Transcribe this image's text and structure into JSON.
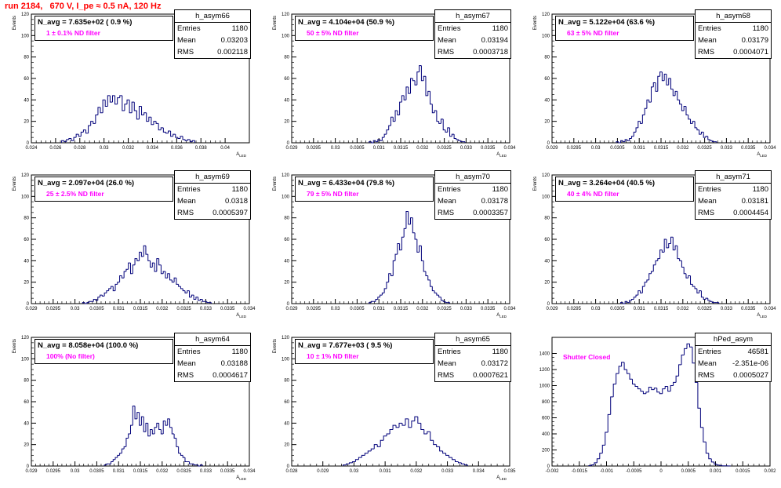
{
  "header": {
    "title": "run 2184,   670 V, I_pe ≈ 0.5 nA, 120 Hz"
  },
  "chart_data": [
    {
      "type": "histogram",
      "name": "h_asym66",
      "ylabel": "Events",
      "xlabel": "A_LED",
      "xlim": [
        0.024,
        0.042
      ],
      "ylim": [
        0,
        120
      ],
      "xticks": [
        "0.024",
        "0.026",
        "0.028",
        "0.03",
        "0.032",
        "0.034",
        "0.036",
        "0.038",
        "0.04"
      ],
      "yticks": [
        "0",
        "20",
        "40",
        "60",
        "80",
        "100",
        "120"
      ],
      "stats": {
        "Entries": "1180",
        "Mean": "0.03203",
        "RMS": "0.002118"
      },
      "navg": "N_avg = 7.635e+02 ( 0.9 %)",
      "filter": "1 ± 0.1% ND filter",
      "x": [
        0.0266,
        0.0268,
        0.027,
        0.0272,
        0.0274,
        0.0276,
        0.0278,
        0.028,
        0.0282,
        0.0284,
        0.0286,
        0.0288,
        0.029,
        0.0292,
        0.0294,
        0.0296,
        0.0298,
        0.03,
        0.0302,
        0.0304,
        0.0306,
        0.0308,
        0.031,
        0.0312,
        0.0314,
        0.0316,
        0.0318,
        0.032,
        0.0322,
        0.0324,
        0.0326,
        0.0328,
        0.033,
        0.0332,
        0.0334,
        0.0336,
        0.0338,
        0.034,
        0.0342,
        0.0344,
        0.0346,
        0.0348,
        0.035,
        0.0352,
        0.0354,
        0.0356,
        0.0358,
        0.036,
        0.0362,
        0.0364,
        0.0366,
        0.0368,
        0.037,
        0.0372,
        0.0374
      ],
      "values": [
        2,
        1,
        3,
        4,
        2,
        5,
        8,
        6,
        10,
        12,
        9,
        16,
        20,
        18,
        26,
        33,
        28,
        40,
        34,
        44,
        38,
        44,
        36,
        42,
        44,
        30,
        36,
        40,
        28,
        38,
        30,
        22,
        34,
        26,
        28,
        20,
        24,
        17,
        20,
        18,
        12,
        14,
        10,
        9,
        11,
        6,
        8,
        5,
        4,
        6,
        3,
        2,
        3,
        1,
        2
      ]
    },
    {
      "type": "histogram",
      "name": "h_asym67",
      "ylabel": "Events",
      "xlabel": "A_LED",
      "xlim": [
        0.029,
        0.034
      ],
      "ylim": [
        0,
        120
      ],
      "xticks": [
        "0.029",
        "0.0295",
        "0.03",
        "0.0305",
        "0.031",
        "0.0315",
        "0.032",
        "0.0325",
        "0.033",
        "0.0335",
        "0.034"
      ],
      "yticks": [
        "0",
        "20",
        "40",
        "60",
        "80",
        "100",
        "120"
      ],
      "stats": {
        "Entries": "1180",
        "Mean": "0.03194",
        "RMS": "0.0003718"
      },
      "navg": "N_avg = 4.104e+04 (50.9 %)",
      "filter": "50 ± 5% ND filter",
      "x": [
        0.0308,
        0.03085,
        0.0309,
        0.03095,
        0.031,
        0.03105,
        0.0311,
        0.03115,
        0.0312,
        0.03125,
        0.0313,
        0.03135,
        0.0314,
        0.03145,
        0.0315,
        0.03155,
        0.0316,
        0.03165,
        0.0317,
        0.03175,
        0.0318,
        0.03185,
        0.0319,
        0.03195,
        0.032,
        0.03205,
        0.0321,
        0.03215,
        0.0322,
        0.03225,
        0.0323,
        0.03235,
        0.0324,
        0.03245,
        0.0325,
        0.03255,
        0.0326,
        0.03265,
        0.0327,
        0.03275,
        0.0328,
        0.03285,
        0.0329,
        0.03295
      ],
      "values": [
        1,
        0,
        2,
        1,
        3,
        2,
        5,
        8,
        12,
        16,
        24,
        20,
        30,
        26,
        38,
        44,
        40,
        52,
        46,
        60,
        58,
        54,
        66,
        72,
        58,
        62,
        44,
        48,
        36,
        28,
        30,
        20,
        18,
        22,
        12,
        10,
        14,
        6,
        8,
        4,
        3,
        2,
        1,
        1
      ]
    },
    {
      "type": "histogram",
      "name": "h_asym68",
      "ylabel": "Events",
      "xlabel": "A_LED",
      "xlim": [
        0.029,
        0.034
      ],
      "ylim": [
        0,
        120
      ],
      "xticks": [
        "0.029",
        "0.0295",
        "0.03",
        "0.0305",
        "0.031",
        "0.0315",
        "0.032",
        "0.0325",
        "0.033",
        "0.0335",
        "0.034"
      ],
      "yticks": [
        "0",
        "20",
        "40",
        "60",
        "80",
        "100",
        "120"
      ],
      "stats": {
        "Entries": "1180",
        "Mean": "0.03179",
        "RMS": "0.0004071"
      },
      "navg": "N_avg = 5.122e+04 (63.6 %)",
      "filter": "63 ± 5% ND filter",
      "x": [
        0.0305,
        0.03055,
        0.0306,
        0.03065,
        0.0307,
        0.03075,
        0.0308,
        0.03085,
        0.0309,
        0.03095,
        0.031,
        0.03105,
        0.0311,
        0.03115,
        0.0312,
        0.03125,
        0.0313,
        0.03135,
        0.0314,
        0.03145,
        0.0315,
        0.03155,
        0.0316,
        0.03165,
        0.0317,
        0.03175,
        0.0318,
        0.03185,
        0.0319,
        0.03195,
        0.032,
        0.03205,
        0.0321,
        0.03215,
        0.0322,
        0.03225,
        0.0323,
        0.03235,
        0.0324,
        0.03245,
        0.0325,
        0.03255,
        0.0326,
        0.03265,
        0.0327,
        0.03275
      ],
      "values": [
        1,
        0,
        2,
        1,
        3,
        2,
        4,
        6,
        10,
        14,
        20,
        18,
        26,
        32,
        40,
        38,
        52,
        56,
        48,
        62,
        66,
        58,
        64,
        54,
        60,
        50,
        44,
        48,
        40,
        36,
        30,
        34,
        26,
        22,
        18,
        20,
        14,
        12,
        8,
        10,
        5,
        6,
        3,
        2,
        1,
        1
      ]
    },
    {
      "type": "histogram",
      "name": "h_asym69",
      "ylabel": "Events",
      "xlabel": "A_LED",
      "xlim": [
        0.029,
        0.034
      ],
      "ylim": [
        0,
        120
      ],
      "xticks": [
        "0.029",
        "0.0295",
        "0.03",
        "0.0305",
        "0.031",
        "0.0315",
        "0.032",
        "0.0325",
        "0.033",
        "0.0335",
        "0.034"
      ],
      "yticks": [
        "0",
        "20",
        "40",
        "60",
        "80",
        "100",
        "120"
      ],
      "stats": {
        "Entries": "1180",
        "Mean": "0.0318",
        "RMS": "0.0005397"
      },
      "navg": "N_avg = 2.097e+04 (26.0 %)",
      "filter": "25 ± 2.5% ND filter",
      "x": [
        0.0302,
        0.03025,
        0.0303,
        0.03035,
        0.0304,
        0.03045,
        0.0305,
        0.03055,
        0.0306,
        0.03065,
        0.0307,
        0.03075,
        0.0308,
        0.03085,
        0.0309,
        0.03095,
        0.031,
        0.03105,
        0.0311,
        0.03115,
        0.0312,
        0.03125,
        0.0313,
        0.03135,
        0.0314,
        0.03145,
        0.0315,
        0.03155,
        0.0316,
        0.03165,
        0.0317,
        0.03175,
        0.0318,
        0.03185,
        0.0319,
        0.03195,
        0.032,
        0.03205,
        0.0321,
        0.03215,
        0.0322,
        0.03225,
        0.0323,
        0.03235,
        0.0324,
        0.03245,
        0.0325,
        0.03255,
        0.0326,
        0.03265,
        0.0327,
        0.03275,
        0.0328,
        0.03285,
        0.0329,
        0.03295,
        0.033,
        0.03305,
        0.0331
      ],
      "values": [
        1,
        0,
        1,
        2,
        2,
        4,
        3,
        6,
        8,
        7,
        10,
        12,
        14,
        16,
        12,
        18,
        20,
        26,
        24,
        30,
        32,
        38,
        28,
        36,
        42,
        40,
        48,
        44,
        54,
        46,
        40,
        34,
        38,
        30,
        42,
        36,
        28,
        30,
        24,
        28,
        22,
        20,
        24,
        18,
        16,
        14,
        12,
        10,
        12,
        6,
        8,
        4,
        6,
        3,
        4,
        2,
        2,
        1,
        1
      ]
    },
    {
      "type": "histogram",
      "name": "h_asym70",
      "ylabel": "Events",
      "xlabel": "A_LED",
      "xlim": [
        0.029,
        0.034
      ],
      "ylim": [
        0,
        120
      ],
      "xticks": [
        "0.029",
        "0.0295",
        "0.03",
        "0.0305",
        "0.031",
        "0.0315",
        "0.032",
        "0.0325",
        "0.033",
        "0.0335",
        "0.034"
      ],
      "yticks": [
        "0",
        "20",
        "40",
        "60",
        "80",
        "100",
        "120"
      ],
      "stats": {
        "Entries": "1180",
        "Mean": "0.03178",
        "RMS": "0.0003357"
      },
      "navg": "N_avg = 6.433e+04 (79.8 %)",
      "filter": "79 ± 5% ND filter",
      "x": [
        0.0308,
        0.03085,
        0.0309,
        0.03095,
        0.031,
        0.03105,
        0.0311,
        0.03115,
        0.0312,
        0.03125,
        0.0313,
        0.03135,
        0.0314,
        0.03145,
        0.0315,
        0.03155,
        0.0316,
        0.03165,
        0.0317,
        0.03175,
        0.0318,
        0.03185,
        0.0319,
        0.03195,
        0.032,
        0.03205,
        0.0321,
        0.03215,
        0.0322,
        0.03225,
        0.0323,
        0.03235,
        0.0324,
        0.03245,
        0.0325,
        0.03255,
        0.0326
      ],
      "values": [
        1,
        2,
        2,
        4,
        6,
        8,
        10,
        14,
        20,
        28,
        26,
        40,
        46,
        56,
        50,
        62,
        70,
        86,
        74,
        80,
        66,
        60,
        48,
        54,
        40,
        30,
        26,
        22,
        16,
        12,
        10,
        8,
        6,
        3,
        2,
        1,
        1
      ]
    },
    {
      "type": "histogram",
      "name": "h_asym71",
      "ylabel": "Events",
      "xlabel": "A_LED",
      "xlim": [
        0.029,
        0.034
      ],
      "ylim": [
        0,
        120
      ],
      "xticks": [
        "0.029",
        "0.0295",
        "0.03",
        "0.0305",
        "0.031",
        "0.0315",
        "0.032",
        "0.0325",
        "0.033",
        "0.0335",
        "0.034"
      ],
      "yticks": [
        "0",
        "20",
        "40",
        "60",
        "80",
        "100",
        "120"
      ],
      "stats": {
        "Entries": "1180",
        "Mean": "0.03181",
        "RMS": "0.0004454"
      },
      "navg": "N_avg = 3.264e+04 (40.5 %)",
      "filter": "40 ± 4% ND filter",
      "x": [
        0.0306,
        0.03065,
        0.0307,
        0.03075,
        0.0308,
        0.03085,
        0.0309,
        0.03095,
        0.031,
        0.03105,
        0.0311,
        0.03115,
        0.0312,
        0.03125,
        0.0313,
        0.03135,
        0.0314,
        0.03145,
        0.0315,
        0.03155,
        0.0316,
        0.03165,
        0.0317,
        0.03175,
        0.0318,
        0.03185,
        0.0319,
        0.03195,
        0.032,
        0.03205,
        0.0321,
        0.03215,
        0.0322,
        0.03225,
        0.0323,
        0.03235,
        0.0324,
        0.03245,
        0.0325,
        0.03255,
        0.0326,
        0.03265,
        0.0327,
        0.03275,
        0.0328
      ],
      "values": [
        1,
        0,
        2,
        1,
        3,
        4,
        6,
        8,
        12,
        10,
        16,
        20,
        22,
        28,
        30,
        36,
        40,
        42,
        50,
        48,
        60,
        52,
        56,
        62,
        50,
        54,
        42,
        40,
        34,
        28,
        24,
        26,
        18,
        16,
        14,
        10,
        12,
        6,
        4,
        5,
        3,
        2,
        1,
        1,
        1
      ]
    },
    {
      "type": "histogram",
      "name": "h_asym64",
      "ylabel": "Events",
      "xlabel": "A_LED",
      "xlim": [
        0.029,
        0.034
      ],
      "ylim": [
        0,
        120
      ],
      "xticks": [
        "0.029",
        "0.0295",
        "0.03",
        "0.0305",
        "0.031",
        "0.0315",
        "0.032",
        "0.0325",
        "0.033",
        "0.0335",
        "0.034"
      ],
      "yticks": [
        "0",
        "20",
        "40",
        "60",
        "80",
        "100",
        "120"
      ],
      "stats": {
        "Entries": "1180",
        "Mean": "0.03188",
        "RMS": "0.0004617"
      },
      "navg": "N_avg = 8.058e+04 (100.0 %)",
      "filter": "100% (No filter)",
      "x": [
        0.0307,
        0.03075,
        0.0308,
        0.03085,
        0.0309,
        0.03095,
        0.031,
        0.03105,
        0.0311,
        0.03115,
        0.0312,
        0.03125,
        0.0313,
        0.03135,
        0.0314,
        0.03145,
        0.0315,
        0.03155,
        0.0316,
        0.03165,
        0.0317,
        0.03175,
        0.0318,
        0.03185,
        0.0319,
        0.03195,
        0.032,
        0.03205,
        0.0321,
        0.03215,
        0.0322,
        0.03225,
        0.0323,
        0.03235,
        0.0324,
        0.03245,
        0.0325,
        0.03255,
        0.0326,
        0.03265,
        0.0327,
        0.03275,
        0.0328,
        0.03285,
        0.0329
      ],
      "values": [
        1,
        2,
        2,
        4,
        6,
        8,
        10,
        12,
        16,
        18,
        26,
        30,
        38,
        56,
        44,
        50,
        38,
        46,
        32,
        40,
        28,
        34,
        30,
        36,
        40,
        34,
        30,
        42,
        38,
        44,
        36,
        30,
        26,
        18,
        12,
        10,
        8,
        4,
        4,
        2,
        2,
        1,
        1,
        0,
        1
      ]
    },
    {
      "type": "histogram",
      "name": "h_asym65",
      "ylabel": "Events",
      "xlabel": "A_LED",
      "xlim": [
        0.028,
        0.035
      ],
      "ylim": [
        0,
        120
      ],
      "xticks": [
        "0.028",
        "0.029",
        "0.03",
        "0.031",
        "0.032",
        "0.033",
        "0.034",
        "0.035"
      ],
      "yticks": [
        "0",
        "20",
        "40",
        "60",
        "80",
        "100",
        "120"
      ],
      "stats": {
        "Entries": "1180",
        "Mean": "0.03172",
        "RMS": "0.0007621"
      },
      "navg": "N_avg = 7.677e+03 ( 9.5 %)",
      "filter": "10 ± 1% ND filter",
      "x": [
        0.0297,
        0.0298,
        0.0299,
        0.03,
        0.0301,
        0.0302,
        0.0303,
        0.0304,
        0.0305,
        0.0306,
        0.0307,
        0.0308,
        0.0309,
        0.031,
        0.0311,
        0.0312,
        0.0313,
        0.0314,
        0.0315,
        0.0316,
        0.0317,
        0.0318,
        0.0319,
        0.032,
        0.0321,
        0.0322,
        0.0323,
        0.0324,
        0.0325,
        0.0326,
        0.0327,
        0.0328,
        0.0329,
        0.033,
        0.0331,
        0.0332,
        0.0333,
        0.0334,
        0.0335,
        0.0336
      ],
      "values": [
        1,
        2,
        3,
        4,
        6,
        8,
        10,
        12,
        14,
        16,
        20,
        18,
        24,
        28,
        30,
        34,
        38,
        36,
        40,
        38,
        44,
        36,
        42,
        46,
        40,
        34,
        30,
        32,
        24,
        20,
        18,
        14,
        12,
        10,
        8,
        6,
        4,
        3,
        2,
        1
      ]
    },
    {
      "type": "histogram",
      "name": "hPed_asym",
      "ylabel": "",
      "xlabel": "",
      "xlim": [
        -0.002,
        0.002
      ],
      "ylim": [
        0,
        1600
      ],
      "xticks": [
        "-0.002",
        "-0.0015",
        "-0.001",
        "-0.0005",
        "0",
        "0.0005",
        "0.001",
        "0.0015",
        "0.002"
      ],
      "yticks": [
        "0",
        "200",
        "400",
        "600",
        "800",
        "1000",
        "1200",
        "1400"
      ],
      "stats": {
        "Entries": "46581",
        "Mean": "-2.351e-06",
        "RMS": "0.0005027"
      },
      "navg": "",
      "filter": "Shutter Closed",
      "x": [
        -0.0013,
        -0.00125,
        -0.0012,
        -0.00115,
        -0.0011,
        -0.00105,
        -0.001,
        -0.00095,
        -0.0009,
        -0.00085,
        -0.0008,
        -0.00075,
        -0.0007,
        -0.00065,
        -0.0006,
        -0.00055,
        -0.0005,
        -0.00045,
        -0.0004,
        -0.00035,
        -0.0003,
        -0.00025,
        -0.0002,
        -0.00015,
        -0.0001,
        -5e-05,
        0,
        5e-05,
        0.0001,
        0.00015,
        0.0002,
        0.00025,
        0.0003,
        0.00035,
        0.0004,
        0.00045,
        0.0005,
        0.00055,
        0.0006,
        0.00065,
        0.0007,
        0.00075,
        0.0008,
        0.00085,
        0.0009,
        0.00095,
        0.001,
        0.00105,
        0.0011,
        0.00115,
        0.0012,
        0.00125
      ],
      "values": [
        5,
        15,
        40,
        90,
        160,
        260,
        420,
        640,
        860,
        1020,
        1150,
        1240,
        1290,
        1200,
        1150,
        1080,
        1020,
        990,
        960,
        930,
        900,
        920,
        980,
        950,
        970,
        920,
        900,
        960,
        990,
        930,
        1000,
        1040,
        1120,
        1260,
        1380,
        1460,
        1520,
        1480,
        1280,
        1040,
        720,
        480,
        300,
        160,
        90,
        50,
        25,
        12,
        6,
        3,
        2,
        1
      ]
    }
  ]
}
